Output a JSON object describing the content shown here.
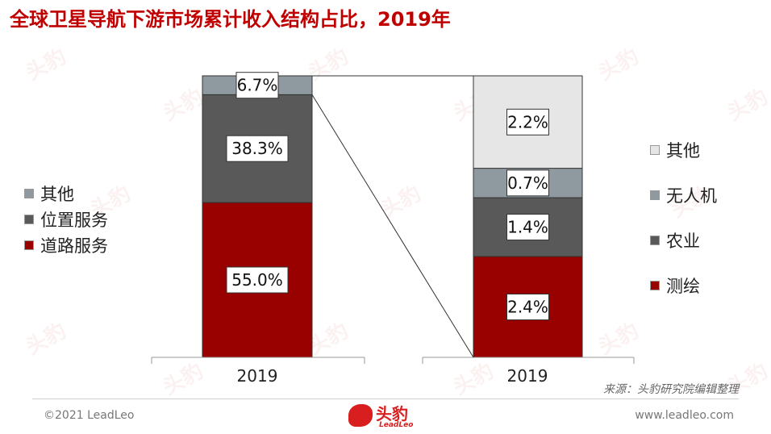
{
  "title": "全球卫星导航下游市场累计收入结构占比，2019年",
  "source": "来源：头豹研究院编辑整理",
  "footer": {
    "copyright": "©2021 LeadLeo",
    "website": "www.leadleo.com"
  },
  "logo": {
    "text": "头豹",
    "sub": "LeadLeo"
  },
  "watermark": "头豹",
  "chart_data": [
    {
      "type": "bar",
      "stacked": true,
      "categories": [
        "2019"
      ],
      "ylim": [
        0,
        100
      ],
      "series": [
        {
          "name": "道路服务",
          "values": [
            55.0
          ],
          "label": "55.0%",
          "color": "#990000"
        },
        {
          "name": "位置服务",
          "values": [
            38.3
          ],
          "label": "38.3%",
          "color": "#595959"
        },
        {
          "name": "其他",
          "values": [
            6.7
          ],
          "label": "6.7%",
          "color": "#8e9aa0"
        }
      ],
      "legend": "left"
    },
    {
      "type": "bar",
      "stacked": true,
      "categories": [
        "2019"
      ],
      "ylim": [
        0,
        6.7
      ],
      "series": [
        {
          "name": "测绘",
          "values": [
            2.4
          ],
          "label": "2.4%",
          "color": "#990000"
        },
        {
          "name": "农业",
          "values": [
            1.4
          ],
          "label": "1.4%",
          "color": "#595959"
        },
        {
          "name": "无人机",
          "values": [
            0.7
          ],
          "label": "0.7%",
          "color": "#8e9aa0"
        },
        {
          "name": "其他",
          "values": [
            2.2
          ],
          "label": "2.2%",
          "color": "#e6e6e6"
        }
      ],
      "legend": "right"
    }
  ]
}
